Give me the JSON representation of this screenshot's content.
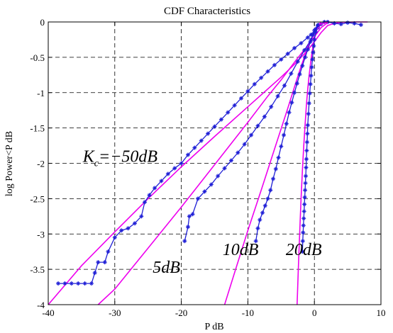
{
  "chart_data": {
    "type": "line",
    "title": "CDF Characteristics",
    "xlabel": "P dB",
    "ylabel": "log Power<P dB",
    "xlim": [
      -40,
      10
    ],
    "ylim": [
      -4,
      0
    ],
    "grid": true,
    "xticks": [
      -40,
      -30,
      -20,
      -10,
      0,
      10
    ],
    "yticks": [
      0,
      -0.5,
      -1,
      -1.5,
      -2,
      -2.5,
      -3,
      -3.5,
      -4
    ],
    "xtick_labels": [
      "-40",
      "-30",
      "-20",
      "-10",
      "0",
      "10"
    ],
    "ytick_labels": [
      "0",
      "-0.5",
      "-1",
      "-1.5",
      "-2",
      "-2.5",
      "-3",
      "-3.5",
      "-4"
    ],
    "colors": {
      "theoretical": "#ee00ee",
      "simulated": "#1f1fd6",
      "axes": "#000000",
      "grid": "#000000"
    },
    "series": [
      {
        "role": "theoretical",
        "kc_label": "-50dB",
        "x": [
          -40,
          -35,
          -30,
          -25,
          -20,
          -15,
          -10,
          -5,
          -3,
          -2,
          -1,
          0,
          1,
          2,
          3,
          4,
          6,
          8
        ],
        "y": [
          -4,
          -3.45,
          -2.97,
          -2.5,
          -2.05,
          -1.62,
          -1.2,
          -0.78,
          -0.6,
          -0.5,
          -0.4,
          -0.28,
          -0.15,
          -0.05,
          -0.02,
          -0.005,
          0,
          0
        ]
      },
      {
        "role": "simulated",
        "kc_label": "-50dB",
        "x": [
          -38.5,
          -37.5,
          -36.5,
          -35.5,
          -34.5,
          -33.5,
          -33,
          -32.5,
          -31.5,
          -31,
          -30,
          -29,
          -28,
          -27,
          -26,
          -25.5,
          -24.8,
          -24,
          -23,
          -22,
          -21,
          -20,
          -19,
          -18,
          -17,
          -16,
          -15,
          -14,
          -13,
          -12,
          -11,
          -10,
          -9,
          -8,
          -7,
          -6,
          -5,
          -4,
          -3,
          -2,
          -1,
          -0.5,
          0,
          0.5,
          1,
          1.5,
          2,
          3,
          4,
          5,
          6,
          7
        ],
        "y": [
          -3.7,
          -3.7,
          -3.7,
          -3.7,
          -3.7,
          -3.7,
          -3.55,
          -3.4,
          -3.4,
          -3.25,
          -3.05,
          -2.95,
          -2.92,
          -2.85,
          -2.75,
          -2.55,
          -2.45,
          -2.35,
          -2.25,
          -2.15,
          -2.07,
          -2,
          -1.88,
          -1.78,
          -1.68,
          -1.58,
          -1.48,
          -1.38,
          -1.28,
          -1.18,
          -1.08,
          -0.98,
          -0.88,
          -0.79,
          -0.7,
          -0.61,
          -0.53,
          -0.45,
          -0.37,
          -0.3,
          -0.22,
          -0.18,
          -0.12,
          -0.08,
          -0.03,
          0,
          0,
          -0.02,
          -0.03,
          -0.01,
          -0.02,
          -0.04
        ]
      },
      {
        "role": "theoretical",
        "kc_label": "5dB",
        "x": [
          -32.5,
          -30,
          -25,
          -20,
          -15,
          -10,
          -7,
          -5,
          -3,
          -2,
          -1,
          0,
          1,
          2
        ],
        "y": [
          -4,
          -3.78,
          -3.2,
          -2.62,
          -2.02,
          -1.42,
          -1.05,
          -0.82,
          -0.57,
          -0.45,
          -0.34,
          -0.21,
          -0.08,
          -0.01
        ]
      },
      {
        "role": "simulated",
        "kc_label": "5dB",
        "x": [
          -19.5,
          -19,
          -18.8,
          -18.3,
          -17.5,
          -16.5,
          -15.5,
          -14.5,
          -13.5,
          -12.5,
          -11.5,
          -10.5,
          -9.5,
          -8.5,
          -7.5,
          -6.5,
          -5.5,
          -4.5,
          -3.5,
          -2.5,
          -1.5,
          -0.5,
          0.5
        ],
        "y": [
          -3.1,
          -2.9,
          -2.75,
          -2.72,
          -2.5,
          -2.4,
          -2.3,
          -2.18,
          -2.07,
          -1.96,
          -1.85,
          -1.73,
          -1.6,
          -1.47,
          -1.34,
          -1.2,
          -1.05,
          -0.9,
          -0.73,
          -0.56,
          -0.4,
          -0.25,
          -0.08
        ]
      },
      {
        "role": "theoretical",
        "kc_label": "10dB",
        "x": [
          -13.5,
          -12,
          -10,
          -8,
          -6,
          -4,
          -3,
          -2,
          -1,
          0,
          1,
          2
        ],
        "y": [
          -4,
          -3.55,
          -2.95,
          -2.38,
          -1.8,
          -1.22,
          -0.92,
          -0.63,
          -0.36,
          -0.15,
          -0.03,
          0
        ]
      },
      {
        "role": "simulated",
        "kc_label": "10dB",
        "x": [
          -8.8,
          -8.5,
          -8.2,
          -7.8,
          -7.4,
          -7,
          -6.6,
          -6.2,
          -5.8,
          -5.4,
          -5,
          -4.6,
          -4.2,
          -3.8,
          -3.4,
          -3,
          -2.6,
          -2.2,
          -1.8,
          -1.4,
          -1,
          -0.6,
          -0.2,
          0.2,
          0.6
        ],
        "y": [
          -3.1,
          -2.92,
          -2.8,
          -2.7,
          -2.6,
          -2.5,
          -2.38,
          -2.22,
          -2.08,
          -1.92,
          -1.76,
          -1.6,
          -1.44,
          -1.28,
          -1.14,
          -1,
          -0.87,
          -0.74,
          -0.62,
          -0.5,
          -0.39,
          -0.28,
          -0.18,
          -0.1,
          -0.04
        ]
      },
      {
        "role": "theoretical",
        "kc_label": "20dB",
        "x": [
          -2.6,
          -2.4,
          -2.2,
          -2,
          -1.8,
          -1.6,
          -1.4,
          -1.2,
          -1,
          -0.8,
          -0.6,
          -0.4,
          -0.2,
          0,
          0.3,
          0.6,
          1
        ],
        "y": [
          -4,
          -3.45,
          -2.95,
          -2.5,
          -2.1,
          -1.75,
          -1.45,
          -1.18,
          -0.95,
          -0.76,
          -0.6,
          -0.46,
          -0.34,
          -0.24,
          -0.12,
          -0.05,
          0
        ]
      },
      {
        "role": "simulated",
        "kc_label": "20dB",
        "x": [
          -1.8,
          -1.75,
          -1.7,
          -1.65,
          -1.6,
          -1.55,
          -1.5,
          -1.45,
          -1.4,
          -1.35,
          -1.3,
          -1.25,
          -1.2,
          -1.15,
          -1.1,
          -1.05,
          -1,
          -0.9,
          -0.8,
          -0.7,
          -0.6,
          -0.5,
          -0.4,
          -0.3,
          -0.2,
          -0.1,
          0,
          0.2,
          0.5
        ],
        "y": [
          -3.25,
          -3.1,
          -2.98,
          -2.88,
          -2.78,
          -2.68,
          -2.58,
          -2.48,
          -2.38,
          -2.28,
          -2.18,
          -2.06,
          -1.94,
          -1.82,
          -1.7,
          -1.58,
          -1.46,
          -1.3,
          -1.15,
          -1.01,
          -0.88,
          -0.76,
          -0.64,
          -0.53,
          -0.43,
          -0.34,
          -0.25,
          -0.14,
          -0.05
        ]
      }
    ],
    "annotations": [
      {
        "kind": "main",
        "prefix": "K",
        "sub": "c",
        "text": "=−50dB",
        "x": -34.8,
        "y": -1.98
      },
      {
        "kind": "plain",
        "text": "5dB",
        "x": -24.3,
        "y": -3.55
      },
      {
        "kind": "plain",
        "text": "10dB",
        "x": -13.8,
        "y": -3.3
      },
      {
        "kind": "plain",
        "text": "20dB",
        "x": -4.3,
        "y": -3.3
      }
    ]
  }
}
